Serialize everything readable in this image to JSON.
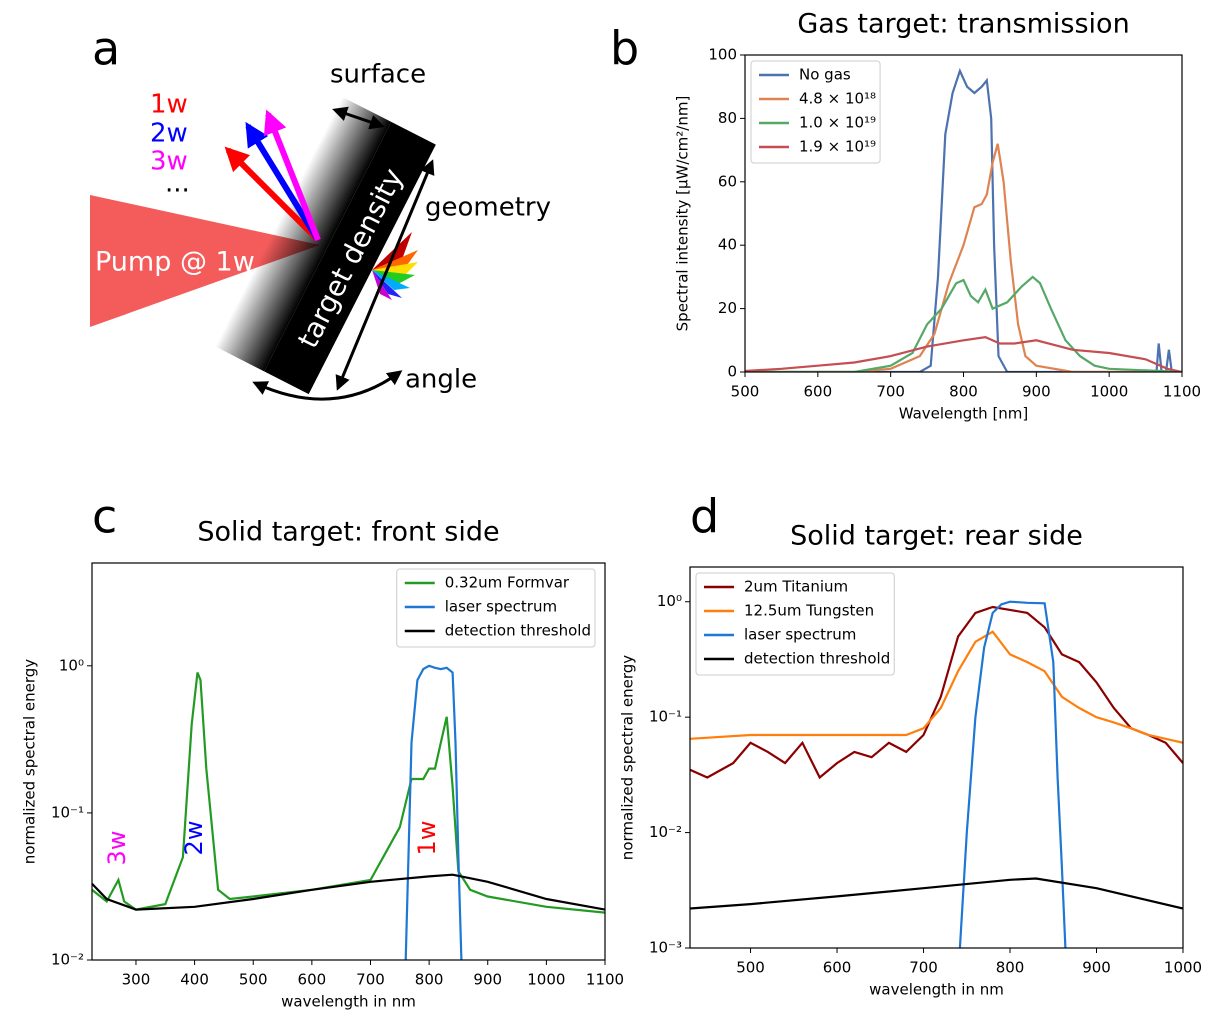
{
  "panel_labels": [
    "a",
    "b",
    "c",
    "d"
  ],
  "diagram": {
    "beam_label": "Pump @ 1w",
    "target_label": "target density",
    "harmonics": [
      {
        "text": "1w",
        "color": "#ff0000"
      },
      {
        "text": "2w",
        "color": "#0000ff"
      },
      {
        "text": "3w",
        "color": "#ff00ff"
      },
      {
        "text": "...",
        "color": "#000000"
      }
    ],
    "annotations": [
      "surface",
      "geometry",
      "angle"
    ]
  },
  "chart_data": [
    {
      "type": "line",
      "title": "Gas target: transmission",
      "x_label": "Wavelength [nm]",
      "y_label": "Spectral intensity [μW/cm²/nm]",
      "xlim": [
        500,
        1100
      ],
      "xticks": [
        500,
        600,
        700,
        800,
        900,
        1000,
        1100
      ],
      "ylim": [
        0,
        100
      ],
      "yticks": [
        0,
        20,
        40,
        60,
        80,
        100
      ],
      "log_y": false,
      "legend": "upper left",
      "series": [
        {
          "name": "No gas",
          "color": "#4c72b0",
          "x": [
            500,
            740,
            755,
            765,
            775,
            785,
            795,
            805,
            815,
            825,
            832,
            838,
            842,
            848,
            860,
            1055,
            1065,
            1068,
            1072,
            1078,
            1082,
            1086,
            1100
          ],
          "values": [
            0,
            0,
            2,
            30,
            75,
            88,
            95,
            90,
            88,
            90,
            92,
            80,
            40,
            5,
            0,
            0,
            0,
            9,
            0,
            0,
            7,
            0,
            0
          ]
        },
        {
          "name": "4.8 × 10¹⁸",
          "color": "#dd8452",
          "x": [
            500,
            650,
            700,
            740,
            760,
            780,
            800,
            815,
            825,
            832,
            840,
            847,
            855,
            865,
            875,
            885,
            900,
            950,
            1100
          ],
          "values": [
            0,
            0,
            1,
            5,
            12,
            28,
            40,
            52,
            53,
            56,
            66,
            72,
            60,
            35,
            15,
            5,
            2,
            0,
            0
          ]
        },
        {
          "name": "1.0 × 10¹⁹",
          "color": "#55a868",
          "x": [
            500,
            650,
            700,
            730,
            750,
            770,
            790,
            800,
            810,
            820,
            830,
            840,
            860,
            880,
            895,
            905,
            920,
            940,
            960,
            980,
            1000,
            1100
          ],
          "values": [
            0,
            0,
            2,
            6,
            15,
            20,
            28,
            29,
            24,
            22,
            26,
            20,
            22,
            27,
            30,
            28,
            20,
            10,
            5,
            2,
            1,
            0
          ]
        },
        {
          "name": "1.9 × 10¹⁹",
          "color": "#c44e52",
          "x": [
            500,
            550,
            600,
            650,
            700,
            750,
            800,
            830,
            850,
            870,
            900,
            950,
            1000,
            1050,
            1080,
            1100
          ],
          "values": [
            0.3,
            1,
            2,
            3,
            5,
            8,
            10,
            11,
            9,
            9,
            10,
            7,
            6,
            4,
            1,
            0
          ]
        }
      ]
    },
    {
      "type": "line",
      "title": "Solid target: front side",
      "x_label": "wavelength in nm",
      "y_label": "normalized spectral energy",
      "xlim": [
        225,
        1100
      ],
      "xticks": [
        300,
        400,
        500,
        600,
        700,
        800,
        900,
        1000,
        1100
      ],
      "ylim": [
        0.01,
        5
      ],
      "yticks": [
        {
          "value": 0.01,
          "label": "10⁻²"
        },
        {
          "value": 0.1,
          "label": "10⁻¹"
        },
        {
          "value": 1,
          "label": "10⁰"
        }
      ],
      "log_y": true,
      "legend": "upper right",
      "annotations": [
        {
          "text": "3w",
          "color": "#ff00ff"
        },
        {
          "text": "2w",
          "color": "#0000ff"
        },
        {
          "text": "1w",
          "color": "#ff0000"
        }
      ],
      "series": [
        {
          "name": "0.32um Formvar",
          "color": "#239b23",
          "x": [
            225,
            250,
            270,
            280,
            300,
            350,
            380,
            395,
            405,
            410,
            420,
            440,
            460,
            500,
            600,
            700,
            750,
            770,
            790,
            800,
            810,
            820,
            830,
            840,
            850,
            870,
            900,
            1000,
            1100
          ],
          "values": [
            0.03,
            0.025,
            0.035,
            0.025,
            0.022,
            0.024,
            0.05,
            0.4,
            0.9,
            0.8,
            0.2,
            0.03,
            0.026,
            0.027,
            0.03,
            0.035,
            0.08,
            0.17,
            0.17,
            0.2,
            0.2,
            0.3,
            0.45,
            0.15,
            0.04,
            0.03,
            0.027,
            0.023,
            0.021
          ]
        },
        {
          "name": "laser spectrum",
          "color": "#1f77d4",
          "x": [
            760,
            770,
            780,
            790,
            800,
            810,
            820,
            830,
            840,
            845,
            850,
            855
          ],
          "values": [
            0.01,
            0.3,
            0.8,
            0.95,
            1.0,
            0.97,
            0.95,
            0.97,
            0.9,
            0.3,
            0.05,
            0.01
          ]
        },
        {
          "name": "detection threshold",
          "color": "#000000",
          "x": [
            225,
            250,
            300,
            400,
            500,
            600,
            700,
            800,
            840,
            900,
            1000,
            1100
          ],
          "values": [
            0.033,
            0.026,
            0.022,
            0.023,
            0.026,
            0.03,
            0.034,
            0.037,
            0.038,
            0.034,
            0.026,
            0.022
          ]
        }
      ]
    },
    {
      "type": "line",
      "title": "Solid target: rear side",
      "x_label": "wavelength in nm",
      "y_label": "normalized spectral energy",
      "xlim": [
        430,
        1000
      ],
      "xticks": [
        500,
        600,
        700,
        800,
        900,
        1000
      ],
      "ylim": [
        0.001,
        2
      ],
      "yticks": [
        {
          "value": 0.001,
          "label": "10⁻³"
        },
        {
          "value": 0.01,
          "label": "10⁻²"
        },
        {
          "value": 0.1,
          "label": "10⁻¹"
        },
        {
          "value": 1,
          "label": "10⁰"
        }
      ],
      "log_y": true,
      "legend": "upper left",
      "series": [
        {
          "name": "2um Titanium",
          "color": "#8b0000",
          "x": [
            430,
            450,
            480,
            500,
            520,
            540,
            560,
            580,
            600,
            620,
            640,
            660,
            680,
            700,
            720,
            740,
            760,
            780,
            800,
            820,
            840,
            860,
            880,
            900,
            920,
            940,
            960,
            980,
            1000
          ],
          "values": [
            0.035,
            0.03,
            0.04,
            0.06,
            0.05,
            0.04,
            0.06,
            0.03,
            0.04,
            0.05,
            0.045,
            0.06,
            0.05,
            0.07,
            0.15,
            0.5,
            0.8,
            0.9,
            0.85,
            0.8,
            0.6,
            0.35,
            0.3,
            0.2,
            0.12,
            0.08,
            0.07,
            0.06,
            0.04
          ]
        },
        {
          "name": "12.5um Tungsten",
          "color": "#ff7f0e",
          "x": [
            430,
            500,
            600,
            680,
            700,
            720,
            740,
            760,
            780,
            800,
            820,
            840,
            860,
            880,
            900,
            920,
            940,
            960,
            980,
            1000
          ],
          "values": [
            0.065,
            0.07,
            0.07,
            0.07,
            0.08,
            0.12,
            0.25,
            0.45,
            0.55,
            0.35,
            0.3,
            0.25,
            0.15,
            0.12,
            0.1,
            0.09,
            0.08,
            0.07,
            0.065,
            0.06
          ]
        },
        {
          "name": "laser spectrum",
          "color": "#1f77d4",
          "x": [
            742,
            750,
            760,
            770,
            780,
            790,
            800,
            820,
            840,
            850,
            855,
            860,
            864
          ],
          "values": [
            0.001,
            0.01,
            0.1,
            0.4,
            0.8,
            0.95,
            1.0,
            0.98,
            0.97,
            0.3,
            0.03,
            0.005,
            0.001
          ]
        },
        {
          "name": "detection threshold",
          "color": "#000000",
          "x": [
            430,
            500,
            600,
            700,
            800,
            830,
            900,
            1000
          ],
          "values": [
            0.0022,
            0.0024,
            0.0028,
            0.0033,
            0.0039,
            0.004,
            0.0033,
            0.0022
          ]
        }
      ]
    }
  ]
}
